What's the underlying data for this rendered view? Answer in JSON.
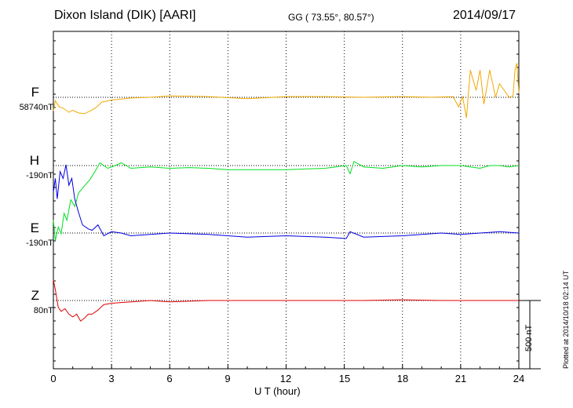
{
  "header": {
    "station": "Dixon Island (DIK)  [AARI]",
    "coords": "GG ( 73.55°,  80.57°)",
    "date": "2014/09/17"
  },
  "chart_data": {
    "type": "line",
    "xlabel": "U T (hour)",
    "xlim": [
      0,
      24
    ],
    "x_ticks": [
      "0",
      "3",
      "6",
      "9",
      "12",
      "15",
      "18",
      "21",
      "24"
    ],
    "scale_bar_label": "500 nT",
    "plotted_note": "Plotted at 2014/10/18 02:14 UT",
    "series": [
      {
        "name": "F",
        "baseline": "58740nT",
        "color": "#f0a800",
        "x": [
          0,
          0.1,
          0.3,
          0.5,
          0.8,
          1.0,
          1.3,
          1.6,
          1.9,
          2.2,
          2.5,
          3.0,
          4,
          5,
          6,
          8,
          10,
          12,
          14,
          16,
          18,
          19.5,
          20.6,
          20.9,
          21.1,
          21.3,
          21.5,
          21.8,
          22.0,
          22.2,
          22.5,
          22.8,
          23.0,
          23.5,
          23.7,
          23.8,
          23.9,
          24
        ],
        "y": [
          -100,
          -25,
          -70,
          -80,
          -110,
          -95,
          -115,
          -120,
          -100,
          -75,
          -35,
          -20,
          -5,
          0,
          10,
          5,
          -10,
          5,
          5,
          0,
          5,
          0,
          5,
          -70,
          5,
          -150,
          200,
          50,
          200,
          -50,
          200,
          0,
          100,
          0,
          10,
          200,
          250,
          30
        ]
      },
      {
        "name": "H",
        "baseline": "-190nT",
        "color": "#00e020",
        "x": [
          0,
          0.1,
          0.25,
          0.4,
          0.55,
          0.7,
          0.9,
          1.1,
          1.3,
          1.6,
          1.9,
          2.2,
          2.4,
          2.6,
          2.8,
          3.2,
          3.5,
          4,
          5,
          6,
          7,
          8,
          9,
          10,
          12,
          14,
          15.1,
          15.3,
          15.5,
          16,
          17,
          18,
          19,
          20,
          21,
          22,
          22.5,
          23,
          23.5,
          24
        ],
        "y": [
          -400,
          -550,
          -450,
          -500,
          -350,
          -400,
          -250,
          -300,
          -200,
          -150,
          -100,
          -30,
          20,
          0,
          -20,
          0,
          20,
          -20,
          -10,
          -20,
          -15,
          -20,
          -30,
          -30,
          -30,
          -20,
          0,
          -60,
          30,
          -10,
          -20,
          0,
          -10,
          0,
          0,
          -20,
          0,
          0,
          -10,
          0
        ]
      },
      {
        "name": "E",
        "baseline": "-190nT",
        "color": "#0000e0",
        "x": [
          0,
          0.1,
          0.2,
          0.35,
          0.5,
          0.65,
          0.8,
          0.95,
          1.1,
          1.3,
          1.5,
          1.8,
          2.0,
          2.3,
          2.6,
          3.0,
          3.5,
          4,
          5,
          6,
          8,
          9,
          10,
          12,
          14,
          15.1,
          15.3,
          16,
          18,
          20,
          21,
          22,
          23,
          24
        ],
        "y": [
          300,
          400,
          250,
          450,
          400,
          500,
          350,
          400,
          250,
          150,
          60,
          30,
          20,
          60,
          -20,
          10,
          0,
          -20,
          -10,
          0,
          -10,
          -20,
          -30,
          -20,
          -30,
          -40,
          10,
          -30,
          -20,
          0,
          -10,
          0,
          10,
          0
        ]
      },
      {
        "name": "Z",
        "baseline": "80nT",
        "color": "#e00000",
        "x": [
          0,
          0.1,
          0.25,
          0.4,
          0.6,
          0.8,
          1.0,
          1.2,
          1.4,
          1.6,
          1.8,
          2.0,
          2.3,
          2.6,
          3.0,
          4,
          5,
          6,
          8,
          10,
          12,
          14,
          16,
          18,
          20,
          22,
          24
        ],
        "y": [
          150,
          80,
          -50,
          -80,
          -60,
          -100,
          -120,
          -100,
          -150,
          -130,
          -100,
          -100,
          -70,
          -30,
          -20,
          -10,
          0,
          -10,
          0,
          0,
          0,
          0,
          0,
          5,
          0,
          0,
          0
        ]
      }
    ]
  }
}
